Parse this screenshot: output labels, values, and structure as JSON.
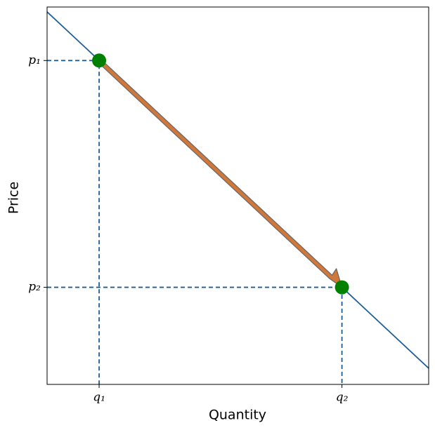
{
  "chart_data": {
    "type": "line",
    "xlabel": "Quantity",
    "ylabel": "Price",
    "xlim": [
      0,
      11
    ],
    "ylim": [
      0,
      11
    ],
    "xticks": [
      {
        "value": 1.5,
        "label": "q₁"
      },
      {
        "value": 8.5,
        "label": "q₂"
      }
    ],
    "yticks": [
      {
        "value": 9.44,
        "label": "p₁"
      },
      {
        "value": 2.83,
        "label": "p₂"
      }
    ],
    "series": [
      {
        "color": "#1f5d99",
        "x": [
          0,
          11
        ],
        "values": [
          10.86,
          0.47
        ]
      }
    ],
    "points": {
      "color": "#008000",
      "x": [
        1.5,
        8.5
      ],
      "values": [
        9.44,
        2.83
      ]
    },
    "arrow_color": "#d2773a"
  }
}
